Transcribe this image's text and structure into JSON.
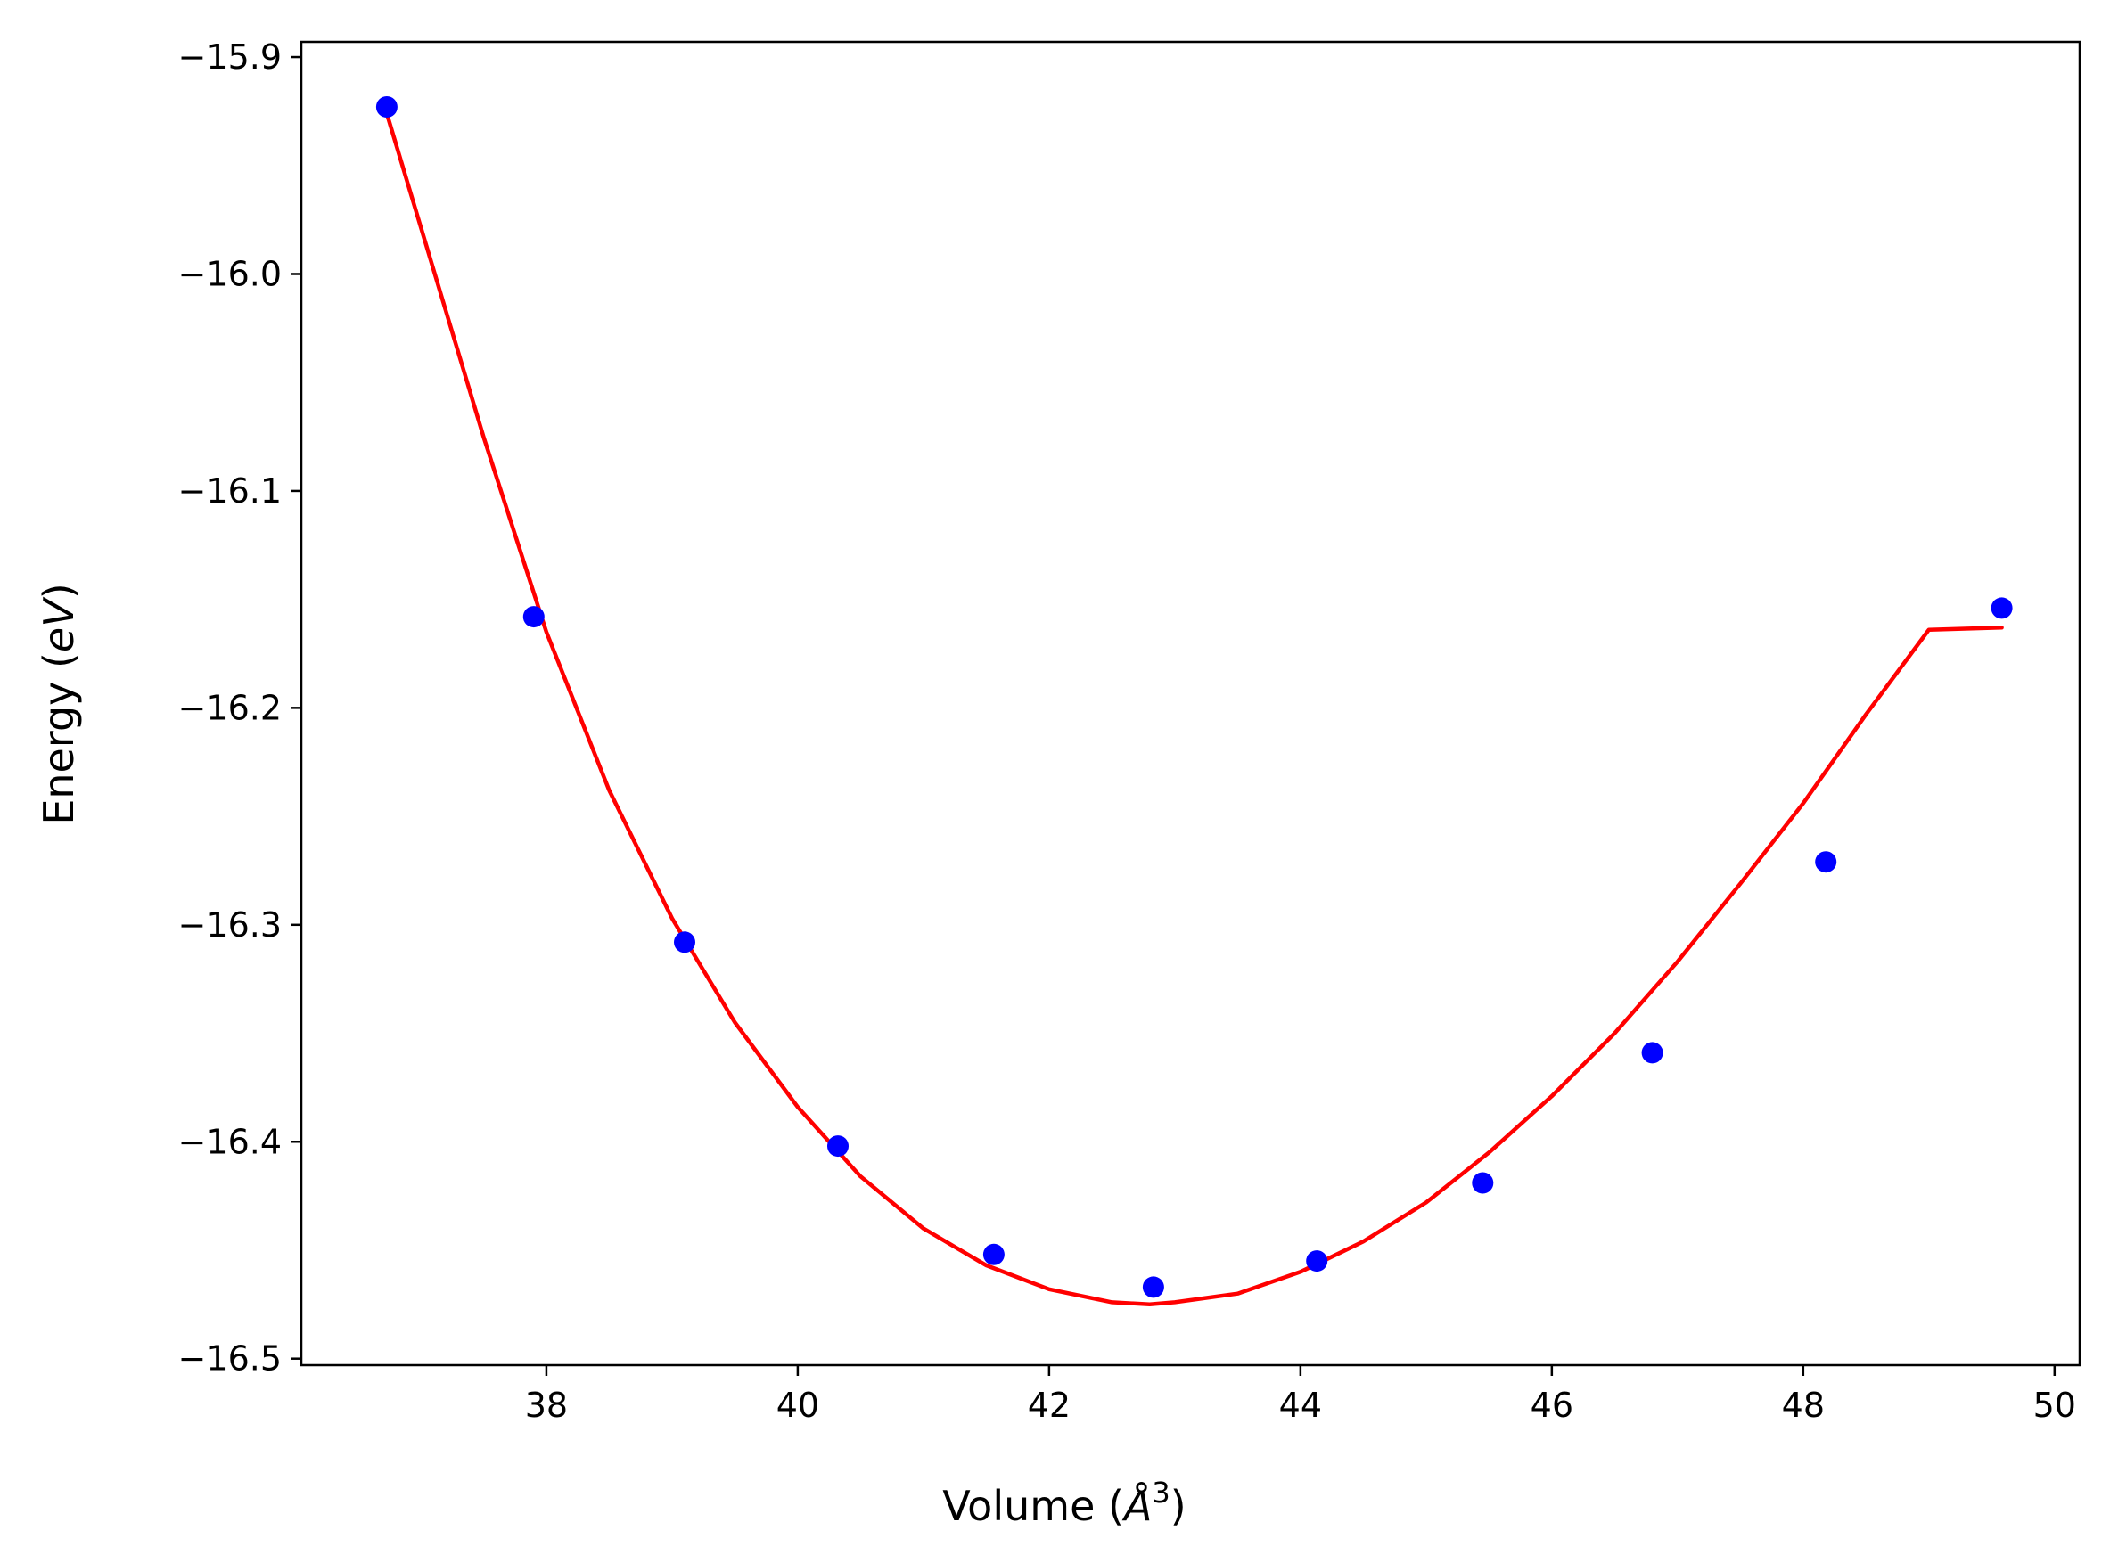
{
  "chart_data": {
    "type": "scatter",
    "title": "",
    "xlabel": "Volume ($\\AA^3$)",
    "xlabel_display": {
      "prefix": "Volume (",
      "symbol": "Å",
      "superscript": "3",
      "suffix": ")"
    },
    "ylabel": "Energy ($eV$)",
    "ylabel_display": {
      "prefix": "Energy (",
      "italic": "eV",
      "suffix": ")"
    },
    "xlim": [
      36.05,
      50.2
    ],
    "ylim": [
      -16.503,
      -15.893
    ],
    "xticks": [
      38,
      40,
      42,
      44,
      46,
      48,
      50
    ],
    "xtick_labels": [
      "38",
      "40",
      "42",
      "44",
      "46",
      "48",
      "50"
    ],
    "yticks": [
      -15.9,
      -16.0,
      -16.1,
      -16.2,
      -16.3,
      -16.4,
      -16.5
    ],
    "ytick_labels": [
      "−15.9",
      "−16.0",
      "−16.1",
      "−16.2",
      "−16.3",
      "−16.4",
      "−16.5"
    ],
    "grid": false,
    "series": [
      {
        "kind": "points",
        "color": "#0000ff",
        "x": [
          36.73,
          37.9,
          39.1,
          40.32,
          41.56,
          42.83,
          44.13,
          45.45,
          46.8,
          48.18,
          49.58
        ],
        "y": [
          -15.923,
          -16.158,
          -16.308,
          -16.402,
          -16.452,
          -16.467,
          -16.455,
          -16.419,
          -16.359,
          -16.271,
          -16.154
        ]
      },
      {
        "kind": "line",
        "color": "#ff0000",
        "x": [
          36.73,
          37.5,
          38.0,
          38.5,
          39.0,
          39.5,
          40.0,
          40.5,
          41.0,
          41.5,
          42.0,
          42.5,
          42.8,
          43.0,
          43.5,
          44.0,
          44.5,
          45.0,
          45.5,
          46.0,
          46.5,
          47.0,
          47.5,
          48.0,
          48.5,
          49.0,
          49.58
        ],
        "y": [
          -15.926,
          -16.075,
          -16.165,
          -16.238,
          -16.297,
          -16.345,
          -16.384,
          -16.416,
          -16.44,
          -16.457,
          -16.468,
          -16.474,
          -16.475,
          -16.474,
          -16.47,
          -16.46,
          -16.446,
          -16.428,
          -16.405,
          -16.379,
          -16.35,
          -16.317,
          -16.281,
          -16.244,
          -16.203,
          -16.164,
          -16.163
        ]
      }
    ]
  }
}
